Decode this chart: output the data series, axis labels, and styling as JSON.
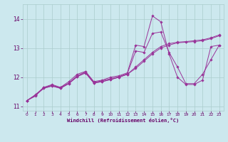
{
  "xlabel": "Windchill (Refroidissement éolien,°C)",
  "background_color": "#cce8ee",
  "line_color": "#993399",
  "grid_color": "#aacccc",
  "text_color": "#660066",
  "xlim": [
    -0.5,
    23.5
  ],
  "ylim": [
    10.85,
    14.5
  ],
  "yticks": [
    11,
    12,
    13,
    14
  ],
  "xticks": [
    0,
    1,
    2,
    3,
    4,
    5,
    6,
    7,
    8,
    9,
    10,
    11,
    12,
    13,
    14,
    15,
    16,
    17,
    18,
    19,
    20,
    21,
    22,
    23
  ],
  "series": [
    [
      11.2,
      11.35,
      11.65,
      11.75,
      11.65,
      11.85,
      12.1,
      12.2,
      11.85,
      11.9,
      12.0,
      12.05,
      12.15,
      13.1,
      13.05,
      14.1,
      13.9,
      12.8,
      12.0,
      11.75,
      11.75,
      11.9,
      13.05,
      13.1
    ],
    [
      11.2,
      11.4,
      11.65,
      11.72,
      11.65,
      11.8,
      12.05,
      12.18,
      11.82,
      11.88,
      11.95,
      12.02,
      12.12,
      12.9,
      12.85,
      13.5,
      13.55,
      12.85,
      12.35,
      11.78,
      11.78,
      12.1,
      12.6,
      13.1
    ],
    [
      11.2,
      11.38,
      11.62,
      11.7,
      11.62,
      11.78,
      12.02,
      12.15,
      11.8,
      11.85,
      11.92,
      12.0,
      12.1,
      12.35,
      12.6,
      12.85,
      13.05,
      13.15,
      13.2,
      13.22,
      13.25,
      13.28,
      13.35,
      13.45
    ],
    [
      11.2,
      11.38,
      11.62,
      11.7,
      11.62,
      11.78,
      12.02,
      12.15,
      11.8,
      11.85,
      11.92,
      12.0,
      12.1,
      12.3,
      12.55,
      12.8,
      13.0,
      13.1,
      13.18,
      13.2,
      13.22,
      13.25,
      13.32,
      13.42
    ]
  ]
}
